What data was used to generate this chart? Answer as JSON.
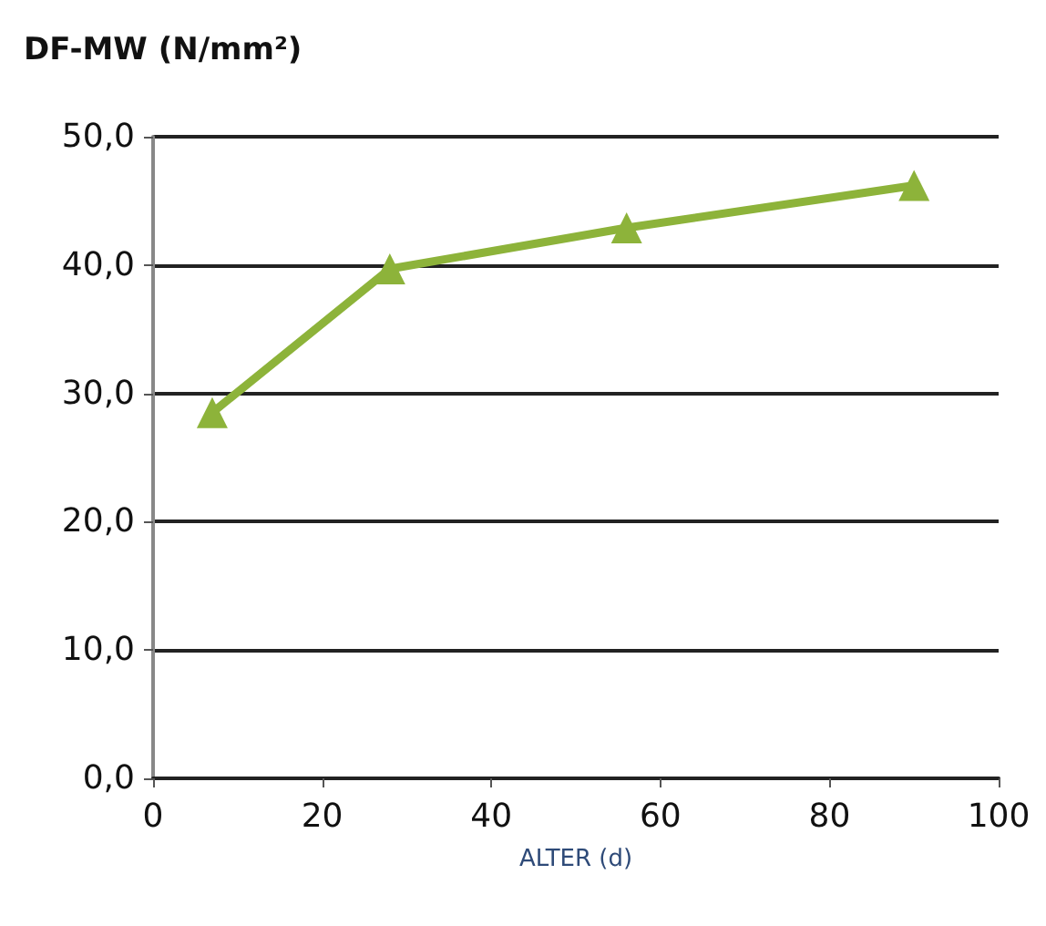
{
  "chart_data": {
    "type": "line",
    "title": "DF-MW (N/mm²)",
    "xlabel": "ALTER (d)",
    "x": [
      7,
      28,
      56,
      90
    ],
    "series": [
      {
        "color": "#8db33a",
        "values": [
          28.5,
          39.7,
          42.9,
          46.2
        ]
      }
    ],
    "xlim": [
      0,
      100
    ],
    "xticks": [
      0,
      20,
      40,
      60,
      80,
      100
    ],
    "ylim": [
      0,
      50
    ],
    "yticks": [
      {
        "value": 0,
        "label": "0,0"
      },
      {
        "value": 10,
        "label": "10,0"
      },
      {
        "value": 20,
        "label": "20,0"
      },
      {
        "value": 30,
        "label": "30,0"
      },
      {
        "value": 40,
        "label": "40,0"
      },
      {
        "value": 50,
        "label": "50,0"
      }
    ],
    "grid": "y",
    "marker": "triangle",
    "line_style": "solid"
  }
}
